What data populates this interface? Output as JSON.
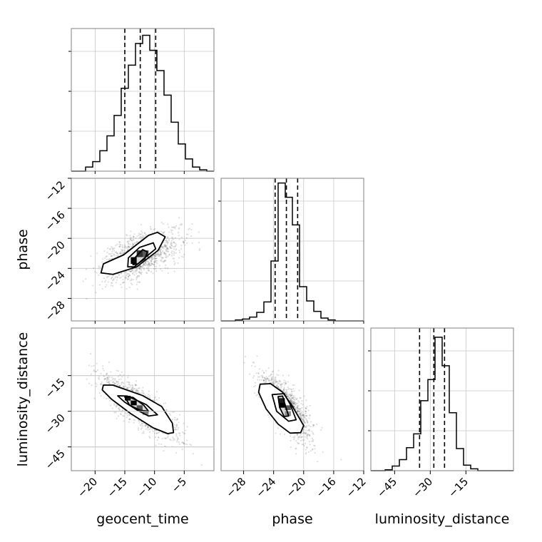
{
  "chart_data": {
    "type": "corner",
    "parameters": [
      "geocent_time",
      "phase",
      "luminosity_distance"
    ],
    "axis_labels": {
      "x": [
        "geocent_time",
        "phase",
        "luminosity_distance"
      ],
      "y": [
        "phase",
        "luminosity_distance"
      ]
    },
    "ranges": {
      "geocent_time": [
        -24,
        0
      ],
      "phase": [
        -31,
        -12
      ],
      "luminosity_distance": [
        -55,
        5
      ]
    },
    "ticks": {
      "geocent_time": [
        -20,
        -15,
        -10,
        -5
      ],
      "phase": [
        -28,
        -24,
        -20,
        -16,
        -12
      ],
      "luminosity_distance": [
        -45,
        -30,
        -15
      ]
    },
    "tick_labels": {
      "geocent_time": [
        "−20",
        "−15",
        "−10",
        "−5"
      ],
      "phase": [
        "−28",
        "−24",
        "−20",
        "−16",
        "−12"
      ],
      "luminosity_distance": [
        "−45",
        "−30",
        "−15"
      ]
    },
    "quantiles": {
      "geocent_time": [
        -15.0,
        -12.4,
        -9.8
      ],
      "phase": [
        -23.8,
        -22.3,
        -20.8
      ],
      "luminosity_distance": [
        -34.5,
        -28.5,
        -24.0
      ]
    },
    "histograms": {
      "geocent_time": {
        "edges": [
          -24,
          -22.8,
          -21.6,
          -20.4,
          -19.2,
          -18,
          -16.8,
          -15.6,
          -14.4,
          -13.2,
          -12,
          -10.8,
          -9.6,
          -8.4,
          -7.2,
          -6,
          -4.8,
          -3.6,
          -2.4,
          -1.2,
          0
        ],
        "counts": [
          0,
          0,
          0.3,
          0.7,
          1.5,
          2.6,
          4.1,
          6.1,
          7.8,
          9.4,
          10.0,
          8.9,
          7.4,
          5.6,
          3.6,
          2.0,
          0.9,
          0.3,
          0.1,
          0
        ],
        "ymax": 10.5
      },
      "phase": {
        "edges": [
          -31,
          -30.05,
          -29.1,
          -28.15,
          -27.2,
          -26.25,
          -25.3,
          -24.35,
          -23.4,
          -22.45,
          -21.5,
          -20.55,
          -19.6,
          -18.65,
          -17.7,
          -16.75,
          -15.8,
          -14.85,
          -13.9,
          -12.95,
          -12
        ],
        "counts": [
          0,
          0,
          0.1,
          0.2,
          0.4,
          0.9,
          2.0,
          6.3,
          14.5,
          13.0,
          10.1,
          3.6,
          2.1,
          1.0,
          0.3,
          0.1,
          0,
          0,
          0,
          0
        ],
        "ymax": 15.0
      },
      "luminosity_distance": {
        "edges": [
          -55,
          -52,
          -49,
          -46,
          -43,
          -40,
          -37,
          -34,
          -31,
          -28,
          -25,
          -22,
          -19,
          -16,
          -13,
          -10,
          -7,
          -4,
          -1,
          2,
          5
        ],
        "counts": [
          0,
          0,
          0.1,
          0.5,
          1.2,
          2.5,
          4.0,
          7.6,
          9.9,
          14.5,
          11.4,
          6.3,
          2.4,
          0.6,
          0.2,
          0,
          0,
          0,
          0,
          0
        ],
        "ymax": 15.5
      }
    },
    "pairs": [
      {
        "x": "geocent_time",
        "y": "phase",
        "correlation": 0.55,
        "means": [
          -12.4,
          -22.3
        ],
        "sds": [
          3.2,
          1.6
        ],
        "contours": [
          [
            [
              -13.6,
              -23.5
            ],
            [
              -13.8,
              -23.0
            ],
            [
              -12.0,
              -21.5
            ],
            [
              -11.2,
              -21.8
            ],
            [
              -11.6,
              -22.7
            ],
            [
              -12.8,
              -23.4
            ]
          ],
          [
            [
              -14.5,
              -23.8
            ],
            [
              -14.4,
              -22.6
            ],
            [
              -12.5,
              -21.2
            ],
            [
              -10.2,
              -20.6
            ],
            [
              -9.8,
              -21.4
            ],
            [
              -11.8,
              -22.7
            ],
            [
              -13.4,
              -23.8
            ]
          ],
          [
            [
              -19.0,
              -24.6
            ],
            [
              -18.6,
              -23.4
            ],
            [
              -15.2,
              -22.2
            ],
            [
              -11.0,
              -19.6
            ],
            [
              -9.5,
              -19.2
            ],
            [
              -8.2,
              -19.8
            ],
            [
              -9.4,
              -21.6
            ],
            [
              -13.0,
              -23.8
            ],
            [
              -17.0,
              -24.8
            ]
          ]
        ],
        "dense_cells": [
          {
            "x": [
              -14,
              -13
            ],
            "y": [
              -23.4,
              -22.5
            ],
            "level": 0.95
          },
          {
            "x": [
              -13,
              -12
            ],
            "y": [
              -22.5,
              -21.6
            ],
            "level": 0.75
          },
          {
            "x": [
              -12,
              -11
            ],
            "y": [
              -22.5,
              -21.6
            ],
            "level": 0.55
          }
        ]
      },
      {
        "x": "geocent_time",
        "y": "luminosity_distance",
        "correlation": -0.82,
        "means": [
          -12.6,
          -28.0
        ],
        "sds": [
          3.2,
          6.5
        ],
        "contours": [
          [
            [
              -15.0,
              -24.0
            ],
            [
              -13.6,
              -24.2
            ],
            [
              -11.8,
              -27.5
            ],
            [
              -11.0,
              -30.0
            ],
            [
              -12.4,
              -29.6
            ],
            [
              -14.2,
              -27.4
            ]
          ],
          [
            [
              -16.2,
              -23.5
            ],
            [
              -14.6,
              -23.6
            ],
            [
              -11.4,
              -27.2
            ],
            [
              -9.5,
              -31.5
            ],
            [
              -11.0,
              -32.0
            ],
            [
              -13.0,
              -29.4
            ],
            [
              -15.0,
              -26.2
            ]
          ],
          [
            [
              -18.6,
              -19.0
            ],
            [
              -17.0,
              -19.0
            ],
            [
              -12.0,
              -23.4
            ],
            [
              -8.8,
              -28.0
            ],
            [
              -7.0,
              -35.0
            ],
            [
              -6.8,
              -39.0
            ],
            [
              -7.8,
              -39.4
            ],
            [
              -10.2,
              -37.0
            ],
            [
              -14.0,
              -31.0
            ],
            [
              -17.2,
              -25.0
            ],
            [
              -18.8,
              -21.0
            ]
          ]
        ],
        "dense_cells": [
          {
            "x": [
              -15,
              -14
            ],
            "y": [
              -25.5,
              -23.5
            ],
            "level": 0.9
          },
          {
            "x": [
              -14,
              -13
            ],
            "y": [
              -27.5,
              -25.5
            ],
            "level": 1.0
          },
          {
            "x": [
              -13,
              -12
            ],
            "y": [
              -29.5,
              -27.5
            ],
            "level": 0.6
          },
          {
            "x": [
              -12,
              -11
            ],
            "y": [
              -31.5,
              -29.5
            ],
            "level": 0.35
          }
        ]
      },
      {
        "x": "phase",
        "y": "luminosity_distance",
        "correlation": -0.72,
        "means": [
          -22.4,
          -28.2
        ],
        "sds": [
          1.6,
          6.5
        ],
        "contours": [
          [
            [
              -23.4,
              -23.8
            ],
            [
              -22.8,
              -23.6
            ],
            [
              -22.4,
              -28.0
            ],
            [
              -22.0,
              -32.0
            ],
            [
              -22.6,
              -32.2
            ],
            [
              -23.2,
              -28.4
            ]
          ],
          [
            [
              -24.2,
              -23.0
            ],
            [
              -22.6,
              -22.6
            ],
            [
              -21.8,
              -27.0
            ],
            [
              -21.0,
              -33.6
            ],
            [
              -22.0,
              -34.2
            ],
            [
              -23.6,
              -30.0
            ]
          ],
          [
            [
              -25.8,
              -18.6
            ],
            [
              -24.4,
              -18.4
            ],
            [
              -22.8,
              -22.0
            ],
            [
              -21.6,
              -27.4
            ],
            [
              -20.0,
              -36.0
            ],
            [
              -20.4,
              -39.0
            ],
            [
              -21.8,
              -39.2
            ],
            [
              -23.4,
              -35.4
            ],
            [
              -25.0,
              -29.0
            ],
            [
              -26.0,
              -22.0
            ]
          ]
        ],
        "dense_cells": [
          {
            "x": [
              -23.3,
              -22.5
            ],
            "y": [
              -26.5,
              -24.5
            ],
            "level": 0.85
          },
          {
            "x": [
              -23.3,
              -22.5
            ],
            "y": [
              -28.5,
              -26.5
            ],
            "level": 1.0
          },
          {
            "x": [
              -22.5,
              -21.7
            ],
            "y": [
              -29.5,
              -27.5
            ],
            "level": 0.55
          },
          {
            "x": [
              -22.5,
              -21.7
            ],
            "y": [
              -32.0,
              -30.0
            ],
            "level": 0.3
          }
        ]
      }
    ],
    "grid": true,
    "histogram_style": "step",
    "quantile_style": "dashed"
  }
}
